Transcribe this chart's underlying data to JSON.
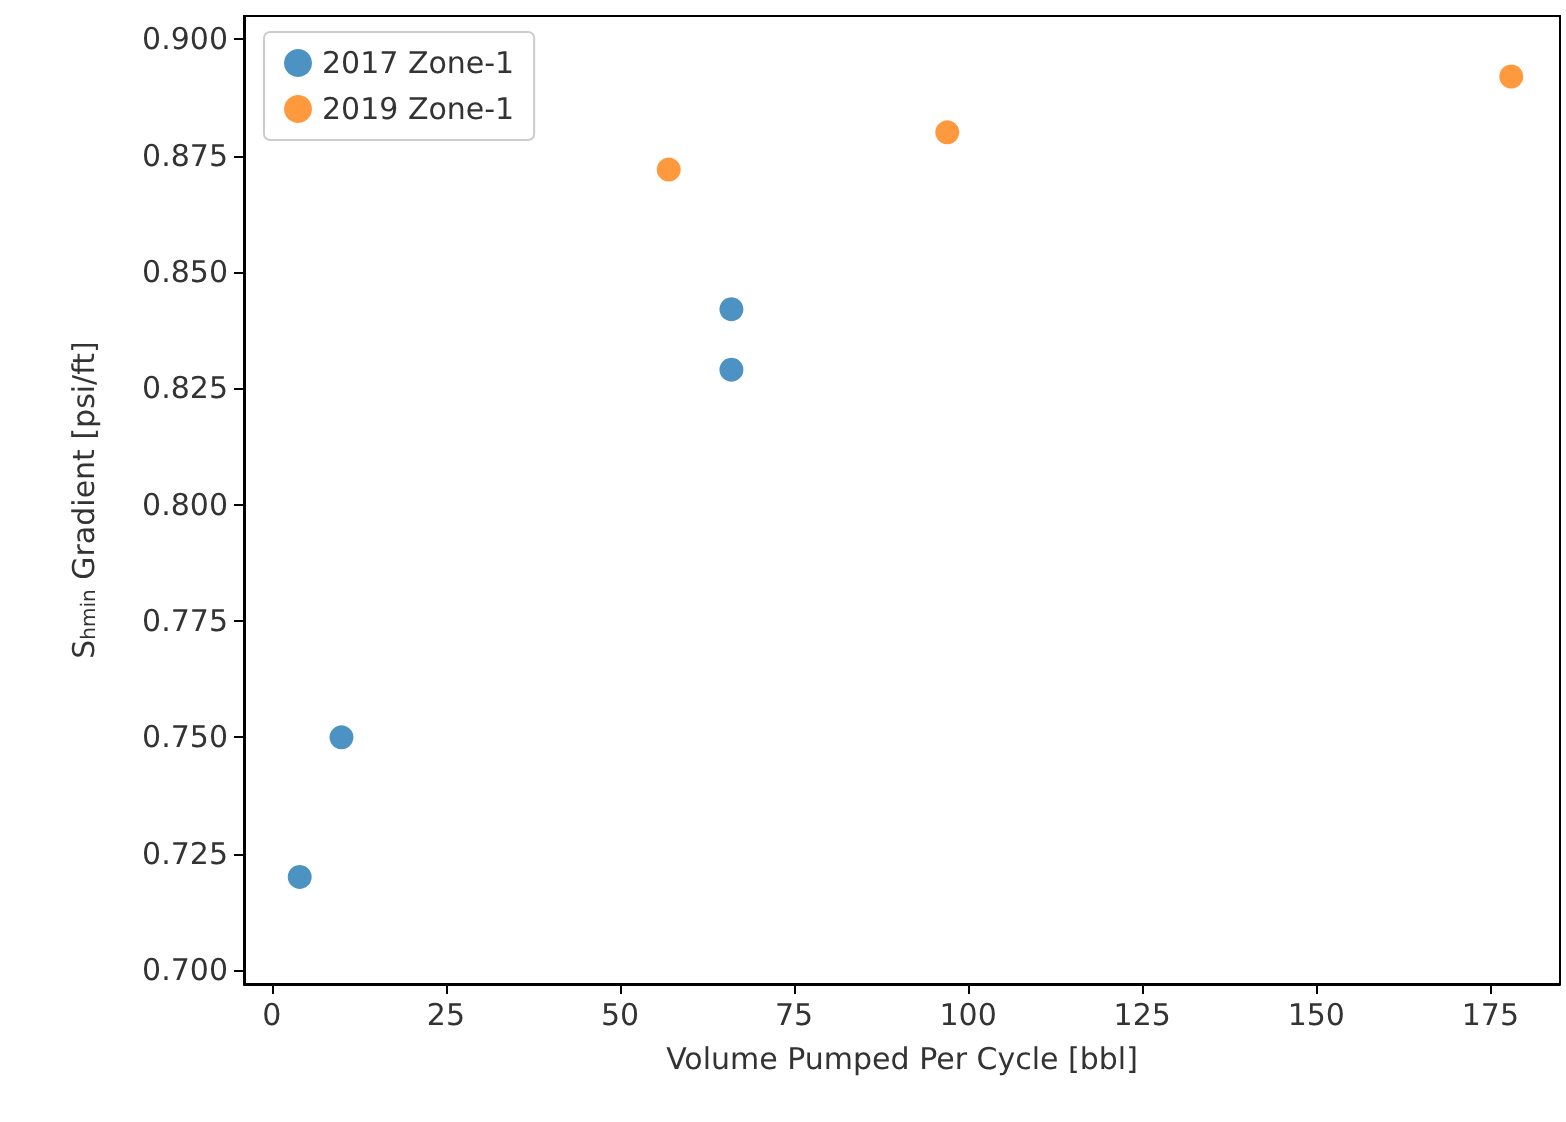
{
  "chart_data": {
    "type": "scatter",
    "xlabel": "Volume Pumped Per Cycle [bbl]",
    "ylabel": "S$_{hmin}$ Gradient [psi/ft]",
    "series": [
      {
        "name": "2017 Zone-1",
        "color": "#1f77b4",
        "x": [
          4,
          10,
          66,
          66
        ],
        "values": [
          0.72,
          0.75,
          0.842,
          0.829
        ]
      },
      {
        "name": "2019 Zone-1",
        "color": "#ff7f0e",
        "x": [
          57,
          97,
          178
        ],
        "values": [
          0.872,
          0.88,
          0.892
        ]
      }
    ],
    "xlim": [
      -4,
      185
    ],
    "xticks": [
      0,
      25,
      50,
      75,
      100,
      125,
      150,
      175
    ],
    "ylim": [
      0.697,
      0.905
    ],
    "yticks": [
      {
        "value": 0.7,
        "label": "0.700"
      },
      {
        "value": 0.725,
        "label": "0.725"
      },
      {
        "value": 0.75,
        "label": "0.750"
      },
      {
        "value": 0.775,
        "label": "0.775"
      },
      {
        "value": 0.8,
        "label": "0.800"
      },
      {
        "value": 0.825,
        "label": "0.825"
      },
      {
        "value": 0.85,
        "label": "0.850"
      },
      {
        "value": 0.875,
        "label": "0.875"
      },
      {
        "value": 0.9,
        "label": "0.900"
      }
    ],
    "legend": "top left",
    "grid": false,
    "marker": "circle"
  }
}
